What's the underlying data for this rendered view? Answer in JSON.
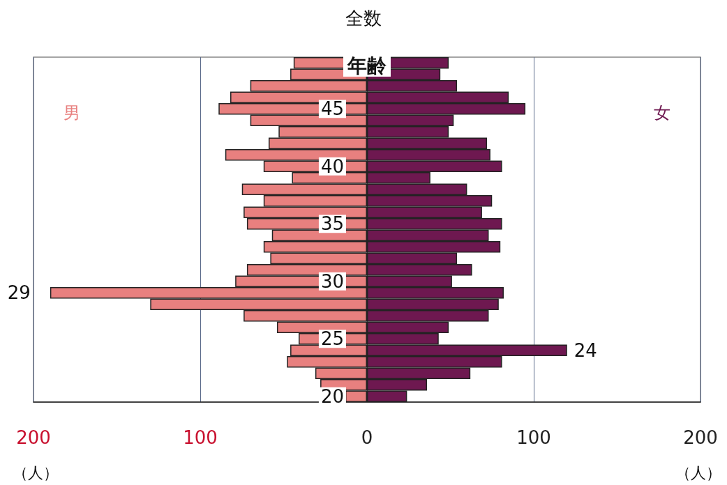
{
  "chart_data": {
    "type": "bar",
    "orientation": "horizontal",
    "title": "全数",
    "ylabel": "年齢",
    "xlabel": "（人）",
    "categories": [
      null,
      null,
      null,
      null,
      "45",
      null,
      null,
      null,
      null,
      "40",
      null,
      null,
      null,
      null,
      "35",
      null,
      null,
      null,
      null,
      "30",
      null,
      null,
      null,
      null,
      "25",
      null,
      null,
      null,
      null,
      "20"
    ],
    "series": [
      {
        "name": "男",
        "color": "#e8807f",
        "values": [
          -44,
          -46,
          -70,
          -82,
          -89,
          -70,
          -53,
          -59,
          -85,
          -62,
          -45,
          -75,
          -62,
          -74,
          -72,
          -57,
          -62,
          -58,
          -72,
          -79,
          -190,
          -130,
          -74,
          -54,
          -41,
          -46,
          -48,
          -31,
          -28,
          -13
        ]
      },
      {
        "name": "女",
        "color": "#6e1850",
        "values": [
          49,
          44,
          54,
          85,
          95,
          52,
          49,
          72,
          74,
          81,
          38,
          60,
          75,
          69,
          81,
          73,
          80,
          54,
          63,
          51,
          82,
          79,
          73,
          49,
          43,
          120,
          81,
          62,
          36,
          24
        ]
      }
    ],
    "stacked": true,
    "xlim": [
      -200,
      200
    ],
    "xticks": [
      {
        "value": -200,
        "label": "200"
      },
      {
        "value": -100,
        "label": "100"
      },
      0,
      100,
      200
    ],
    "grid": "x",
    "annotations": [
      {
        "text": "29",
        "x": -190
      },
      {
        "text": "24",
        "x": 120
      }
    ]
  }
}
